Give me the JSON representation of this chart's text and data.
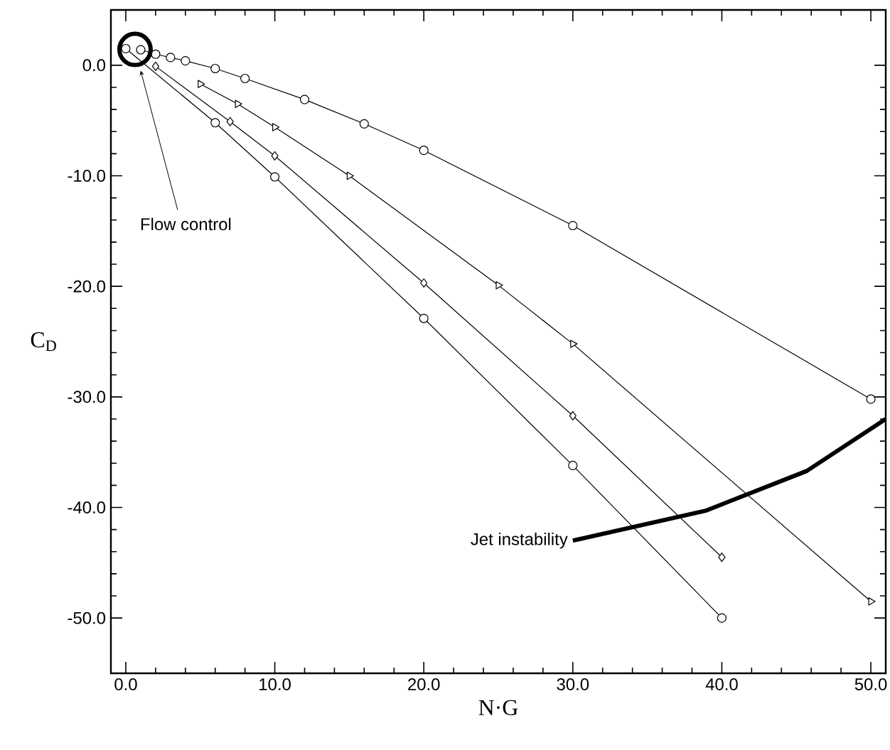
{
  "chart_data": {
    "type": "line",
    "xlabel": "N·G",
    "ylabel": "C$_{D}$",
    "xlim": [
      -1,
      51
    ],
    "ylim": [
      -55,
      5
    ],
    "xticks": [
      {
        "value": 0,
        "label": "0.0"
      },
      {
        "value": 10,
        "label": "10.0"
      },
      {
        "value": 20,
        "label": "20.0"
      },
      {
        "value": 30,
        "label": "30.0"
      },
      {
        "value": 40,
        "label": "40.0"
      },
      {
        "value": 50,
        "label": "50.0"
      }
    ],
    "yticks": [
      {
        "value": 0,
        "label": "0.0"
      },
      {
        "value": -10,
        "label": "-10.0"
      },
      {
        "value": -20,
        "label": "-20.0"
      },
      {
        "value": -30,
        "label": "-30.0"
      },
      {
        "value": -40,
        "label": "-40.0"
      },
      {
        "value": -50,
        "label": "-50.0"
      }
    ],
    "series": [
      {
        "color": "#000000",
        "marker": "circle",
        "x": [
          1,
          2,
          3,
          4,
          6,
          8,
          12,
          16,
          20,
          30,
          50
        ],
        "values": [
          1.4,
          1.0,
          0.7,
          0.4,
          -0.3,
          -1.2,
          -3.1,
          -5.3,
          -7.7,
          -14.5,
          -30.2
        ]
      },
      {
        "color": "#000000",
        "marker": "triangle",
        "x": [
          5,
          7.5,
          10,
          15,
          25,
          30,
          50
        ],
        "values": [
          -1.7,
          -3.5,
          -5.6,
          -10.0,
          -19.9,
          -25.2,
          -48.5
        ]
      },
      {
        "color": "#000000",
        "marker": "diamond",
        "x": [
          2,
          7,
          10,
          20,
          30,
          40
        ],
        "values": [
          -0.1,
          -5.1,
          -8.2,
          -19.7,
          -31.7,
          -44.5
        ]
      },
      {
        "color": "#000000",
        "marker": "circle",
        "x": [
          0,
          6,
          10,
          20,
          30,
          40
        ],
        "values": [
          1.5,
          -5.2,
          -10.1,
          -22.9,
          -36.2,
          -50.0
        ]
      },
      {
        "name": "Jet instability",
        "color": "#000000",
        "marker": "none",
        "x": [
          30,
          38.9,
          45.7,
          51
        ],
        "values": [
          -43.0,
          -40.3,
          -36.7,
          -32.0
        ]
      }
    ],
    "annotations": [
      {
        "text": "Flow control",
        "x": 1.0,
        "y": -0.5
      }
    ]
  }
}
